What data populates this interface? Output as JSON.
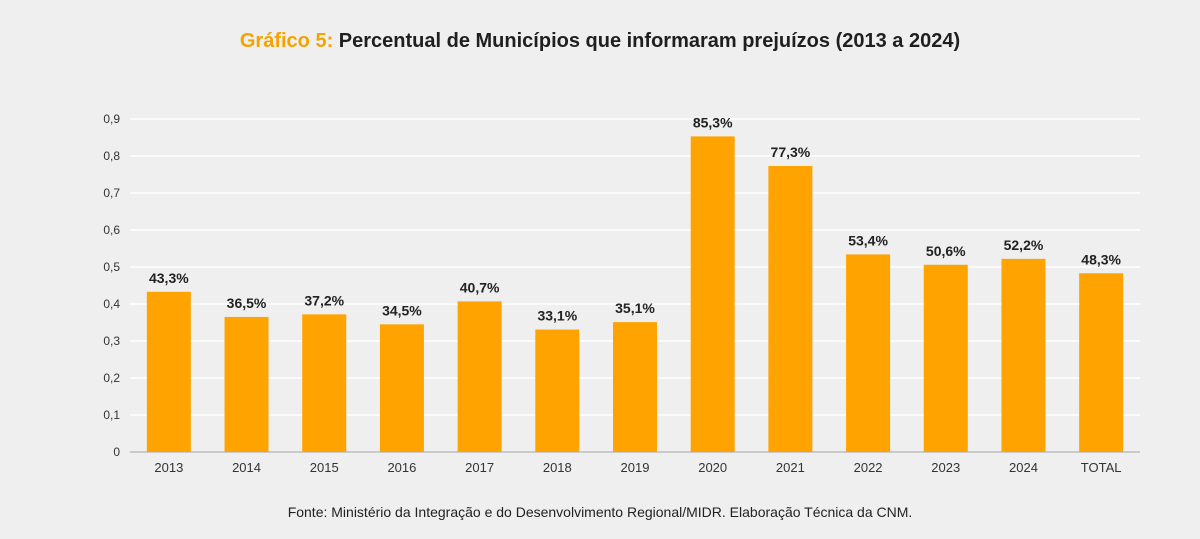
{
  "title": {
    "prefix": "Gráfico 5:",
    "main": "Percentual de Municípios que informaram prejuízos (2013 a 2024)"
  },
  "source": "Fonte: Ministério da Integração e do Desenvolvimento Regional/MIDR. Elaboração Técnica da CNM.",
  "colors": {
    "bar": "#ffa300",
    "prefix": "#f5a300",
    "grid": "#ffffff",
    "background": "#efefef"
  },
  "chart_data": {
    "type": "bar",
    "title": "Gráfico 5: Percentual de Municípios que informaram prejuízos (2013 a 2024)",
    "categories": [
      "2013",
      "2014",
      "2015",
      "2016",
      "2017",
      "2018",
      "2019",
      "2020",
      "2021",
      "2022",
      "2023",
      "2024",
      "TOTAL"
    ],
    "values": [
      0.433,
      0.365,
      0.372,
      0.345,
      0.407,
      0.331,
      0.351,
      0.853,
      0.773,
      0.534,
      0.506,
      0.522,
      0.483
    ],
    "data_labels": [
      "43,3%",
      "36,5%",
      "37,2%",
      "34,5%",
      "40,7%",
      "33,1%",
      "35,1%",
      "85,3%",
      "77,3%",
      "53,4%",
      "50,6%",
      "52,2%",
      "48,3%"
    ],
    "y_ticks": [
      "0",
      "0,1",
      "0,2",
      "0,3",
      "0,4",
      "0,5",
      "0,6",
      "0,7",
      "0,8",
      "0,9"
    ],
    "ylim": [
      0,
      0.9
    ],
    "grid": true,
    "legend": "none",
    "xlabel": "",
    "ylabel": ""
  }
}
